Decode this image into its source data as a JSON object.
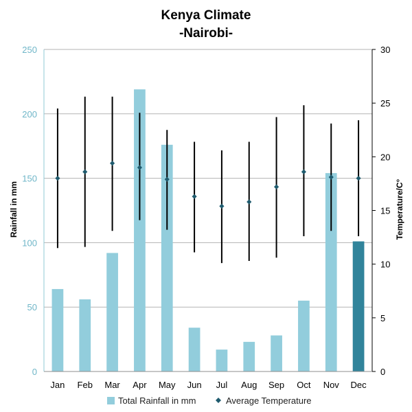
{
  "chart_data": {
    "type": "bar",
    "title": "Kenya Climate",
    "subtitle": "-Nairobi-",
    "categories": [
      "Jan",
      "Feb",
      "Mar",
      "Apr",
      "May",
      "Jun",
      "Jul",
      "Aug",
      "Sep",
      "Oct",
      "Nov",
      "Dec"
    ],
    "ylabel": "Rainfall in mm",
    "y2label": "Temperature/C°",
    "ylim": [
      0,
      250
    ],
    "y2lim": [
      0,
      30
    ],
    "yticks": [
      "0",
      "50",
      "100",
      "150",
      "200",
      "250"
    ],
    "y2ticks": [
      "0",
      "5",
      "10",
      "15",
      "20",
      "25",
      "30"
    ],
    "grid": true,
    "legend_position": "bottom",
    "series": [
      {
        "name": "Total Rainfall in mm",
        "type": "bar",
        "axis": "left",
        "color": "#92CDDC",
        "highlight_color": "#31849B",
        "highlight_index": 11,
        "values": [
          64,
          56,
          92,
          219,
          176,
          34,
          17,
          23,
          28,
          55,
          154,
          101
        ]
      },
      {
        "name": "Average Temperature",
        "type": "point",
        "axis": "right",
        "color": "#1F5B6E",
        "values": [
          18.0,
          18.6,
          19.4,
          19.0,
          17.9,
          16.3,
          15.4,
          15.8,
          17.2,
          18.6,
          18.1,
          18.0
        ],
        "range_high": [
          24.5,
          25.6,
          25.6,
          24.1,
          22.5,
          21.4,
          20.6,
          21.4,
          23.7,
          24.8,
          23.1,
          23.4
        ],
        "range_low": [
          11.5,
          11.6,
          13.1,
          14.1,
          13.2,
          11.1,
          10.1,
          10.3,
          10.6,
          12.6,
          13.1,
          12.6
        ]
      }
    ]
  }
}
